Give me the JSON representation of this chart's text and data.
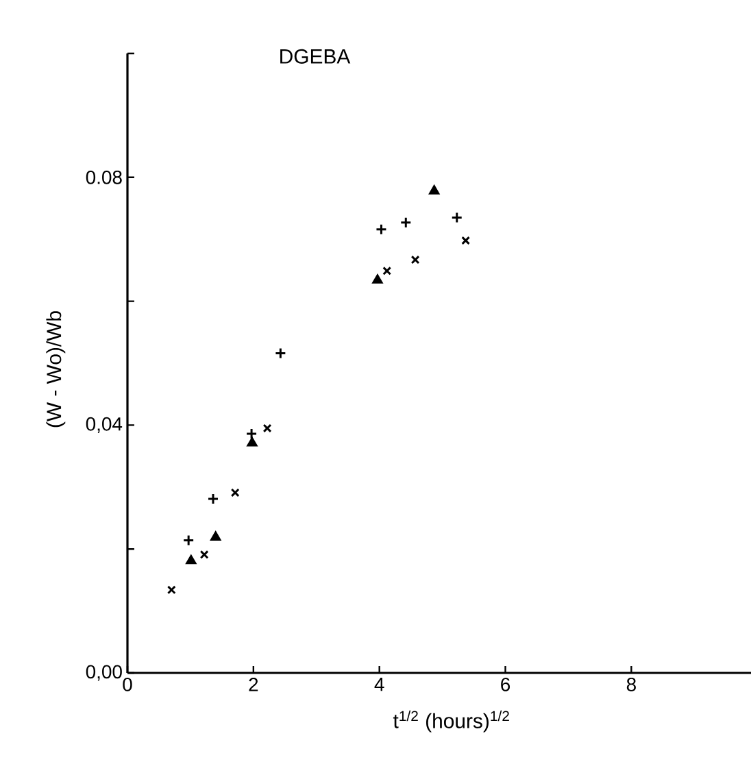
{
  "chart_data": {
    "type": "scatter",
    "title": "DGEBA",
    "xlabel": "t$^{1/2}$ (hours)$^{1/2}$",
    "ylabel": "(W - Wo)/Wb",
    "xlim": [
      0,
      9.9
    ],
    "ylim": [
      0,
      0.1
    ],
    "xticks": [
      0,
      2,
      4,
      6,
      8
    ],
    "yticks": [
      {
        "value": 0,
        "label": "0,00"
      },
      {
        "value": 0.02,
        "label": null
      },
      {
        "value": 0.04,
        "label": "0,04"
      },
      {
        "value": 0.06,
        "label": null
      },
      {
        "value": 0.08,
        "label": "0.08"
      },
      {
        "value": 0.1,
        "label": null
      }
    ],
    "grid": false,
    "series": [
      {
        "color": "#000000",
        "marker": "plus",
        "x": [
          0.97,
          1.36,
          1.97,
          2.43,
          4.03,
          4.42,
          5.23
        ],
        "values": [
          0.0214,
          0.0281,
          0.0386,
          0.0516,
          0.0716,
          0.0727,
          0.0735
        ]
      },
      {
        "color": "#000000",
        "marker": "cross",
        "x": [
          0.7,
          1.22,
          1.71,
          2.22,
          4.12,
          4.57,
          5.37
        ],
        "values": [
          0.0134,
          0.0191,
          0.0291,
          0.0395,
          0.0649,
          0.0667,
          0.0698
        ]
      },
      {
        "color": "#000000",
        "marker": "triangle",
        "x": [
          1.01,
          1.4,
          1.98,
          3.97,
          4.87
        ],
        "values": [
          0.0181,
          0.0219,
          0.0371,
          0.0634,
          0.0778
        ]
      }
    ]
  }
}
